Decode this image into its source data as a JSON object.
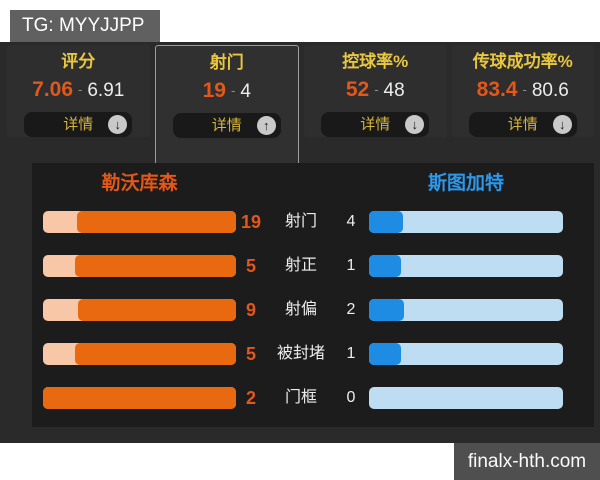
{
  "badge": {
    "text": "TG: MYYJJPP"
  },
  "ui": {
    "detail_label": "详情",
    "value_separator": "-"
  },
  "cards": [
    {
      "title": "评分",
      "home": "7.06",
      "away": "6.91",
      "arrow": "down",
      "selected": false
    },
    {
      "title": "射门",
      "home": "19",
      "away": "4",
      "arrow": "up",
      "selected": true
    },
    {
      "title": "控球率%",
      "home": "52",
      "away": "48",
      "arrow": "down",
      "selected": false
    },
    {
      "title": "传球成功率%",
      "home": "83.4",
      "away": "80.6",
      "arrow": "down",
      "selected": false
    }
  ],
  "panel": {
    "home_team": "勒沃库森",
    "away_team": "斯图加特",
    "rows": [
      {
        "label": "射门",
        "home": 19,
        "away": 4
      },
      {
        "label": "射正",
        "home": 5,
        "away": 1
      },
      {
        "label": "射偏",
        "home": 9,
        "away": 2
      },
      {
        "label": "被封堵",
        "home": 5,
        "away": 1
      },
      {
        "label": "门框",
        "home": 2,
        "away": 0
      }
    ]
  },
  "watermark": {
    "text": "finalx-hth.com"
  },
  "colors": {
    "home_accent": "#e2571a",
    "away_accent": "#2d97ea",
    "home_bar": "#e8690f",
    "home_track": "#f7c7a7",
    "away_bar": "#1e8ce2",
    "away_track": "#bedcf2",
    "title_yellow": "#e9c73e"
  },
  "chart_data": {
    "type": "bar",
    "layout": "mirrored-horizontal",
    "categories": [
      "射门",
      "射正",
      "射偏",
      "被封堵",
      "门框"
    ],
    "series": [
      {
        "name": "勒沃库森",
        "color": "#e8690f",
        "values": [
          19,
          5,
          9,
          5,
          2
        ]
      },
      {
        "name": "斯图加特",
        "color": "#1e8ce2",
        "values": [
          4,
          1,
          2,
          1,
          0
        ]
      }
    ],
    "note": "fill width = side value / (home+away) per row"
  }
}
